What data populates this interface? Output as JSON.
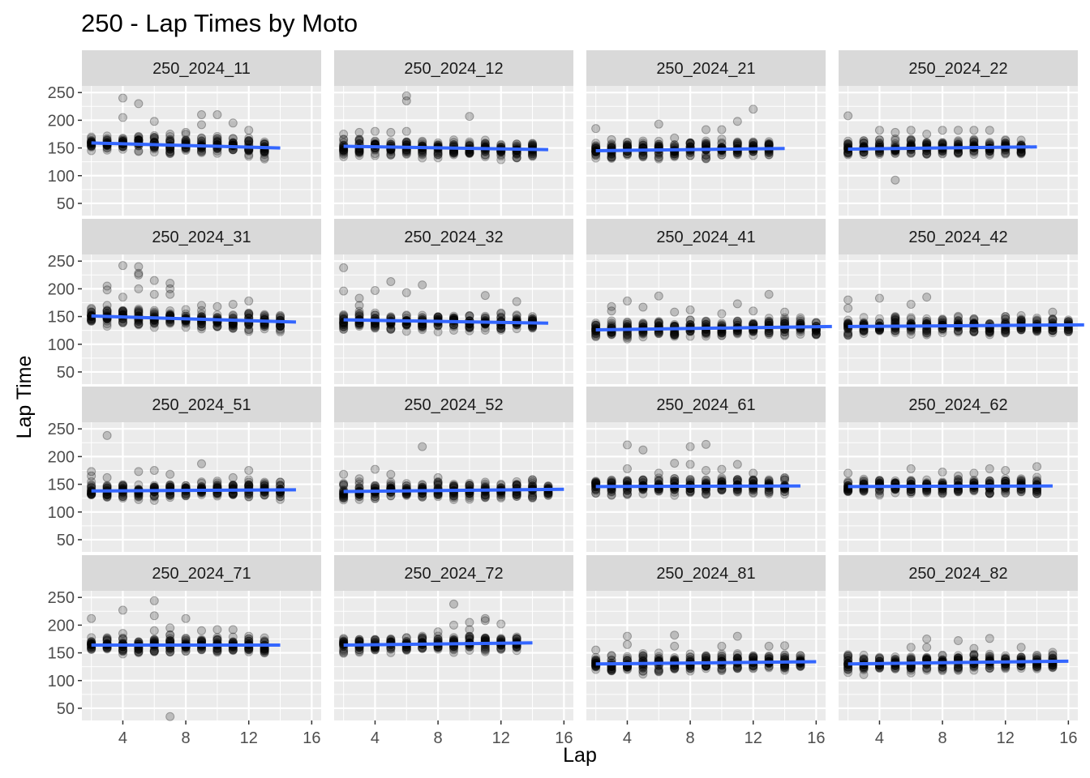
{
  "chart_data": {
    "type": "scatter",
    "title": "250 - Lap Times by Moto",
    "xlabel": "Lap",
    "ylabel": "Lap Time",
    "xlim": [
      1.4,
      16.6
    ],
    "ylim": [
      28,
      262
    ],
    "x_ticks": [
      4,
      8,
      12,
      16
    ],
    "y_ticks": [
      50,
      100,
      150,
      200,
      250
    ],
    "grid": true,
    "colors": {
      "panel_bg": "#ebebeb",
      "strip_bg": "#d9d9d9",
      "grid": "#ffffff",
      "points": "#000000",
      "trend": "#3366ff",
      "text": "#1a1a1a",
      "tick_text": "#4d4d4d"
    },
    "panels": [
      {
        "label": "250_2024_11",
        "max_lap": 13,
        "trend": [
          159,
          150
        ],
        "base": [
          158,
          156,
          160,
          158,
          157,
          156,
          156,
          155,
          154,
          153,
          152,
          150
        ],
        "outliers": [
          [
            4,
            240
          ],
          [
            5,
            230
          ],
          [
            4,
            205
          ],
          [
            6,
            198
          ],
          [
            9,
            210
          ],
          [
            9,
            192
          ],
          [
            10,
            210
          ],
          [
            11,
            195
          ],
          [
            12,
            182
          ],
          [
            8,
            178
          ],
          [
            7,
            175
          ],
          [
            13,
            152
          ]
        ]
      },
      {
        "label": "250_2024_12",
        "max_lap": 14,
        "trend": [
          153,
          147
        ],
        "base": [
          150,
          151,
          152,
          150,
          150,
          150,
          149,
          148,
          148,
          147,
          147,
          147,
          146
        ],
        "outliers": [
          [
            6,
            244
          ],
          [
            6,
            235
          ],
          [
            10,
            207
          ],
          [
            3,
            178
          ],
          [
            4,
            180
          ],
          [
            5,
            178
          ],
          [
            6,
            180
          ],
          [
            2,
            175
          ],
          [
            14,
            150
          ]
        ]
      },
      {
        "label": "250_2024_21",
        "max_lap": 13,
        "trend": [
          145,
          149
        ],
        "base": [
          146,
          146,
          147,
          147,
          147,
          147,
          148,
          148,
          148,
          148,
          149,
          148
        ],
        "outliers": [
          [
            2,
            185
          ],
          [
            6,
            193
          ],
          [
            9,
            183
          ],
          [
            10,
            183
          ],
          [
            11,
            198
          ],
          [
            12,
            220
          ],
          [
            3,
            165
          ],
          [
            7,
            168
          ],
          [
            13,
            155
          ]
        ]
      },
      {
        "label": "250_2024_22",
        "max_lap": 13,
        "trend": [
          148,
          152
        ],
        "base": [
          148,
          148,
          149,
          149,
          150,
          150,
          151,
          151,
          151,
          151,
          152,
          150
        ],
        "outliers": [
          [
            2,
            208
          ],
          [
            4,
            182
          ],
          [
            5,
            92
          ],
          [
            5,
            178
          ],
          [
            6,
            182
          ],
          [
            8,
            182
          ],
          [
            9,
            182
          ],
          [
            10,
            182
          ],
          [
            11,
            182
          ],
          [
            7,
            175
          ]
        ]
      },
      {
        "label": "250_2024_31",
        "max_lap": 14,
        "trend": [
          151,
          140
        ],
        "base": [
          150,
          150,
          150,
          148,
          147,
          146,
          145,
          144,
          143,
          142,
          141,
          140,
          138
        ],
        "outliers": [
          [
            4,
            242
          ],
          [
            5,
            240
          ],
          [
            5,
            228
          ],
          [
            5,
            225
          ],
          [
            6,
            215
          ],
          [
            7,
            210
          ],
          [
            7,
            200
          ],
          [
            7,
            190
          ],
          [
            6,
            190
          ],
          [
            3,
            205
          ],
          [
            3,
            198
          ],
          [
            4,
            185
          ],
          [
            5,
            200
          ],
          [
            3,
            170
          ],
          [
            11,
            172
          ],
          [
            12,
            178
          ],
          [
            9,
            170
          ],
          [
            10,
            168
          ]
        ]
      },
      {
        "label": "250_2024_32",
        "max_lap": 14,
        "trend": [
          144,
          138
        ],
        "base": [
          142,
          142,
          142,
          141,
          141,
          140,
          140,
          140,
          139,
          139,
          139,
          138,
          138
        ],
        "outliers": [
          [
            2,
            238
          ],
          [
            2,
            196
          ],
          [
            3,
            183
          ],
          [
            4,
            197
          ],
          [
            5,
            213
          ],
          [
            6,
            193
          ],
          [
            7,
            207
          ],
          [
            11,
            188
          ],
          [
            13,
            177
          ],
          [
            14,
            150
          ],
          [
            3,
            170
          ]
        ]
      },
      {
        "label": "250_2024_41",
        "max_lap": 16,
        "trend": [
          126,
          132
        ],
        "base": [
          126,
          127,
          127,
          127,
          128,
          128,
          128,
          129,
          129,
          130,
          130,
          130,
          131,
          131,
          128
        ],
        "outliers": [
          [
            3,
            168
          ],
          [
            3,
            160
          ],
          [
            4,
            178
          ],
          [
            5,
            167
          ],
          [
            6,
            187
          ],
          [
            7,
            158
          ],
          [
            8,
            162
          ],
          [
            11,
            173
          ],
          [
            13,
            190
          ],
          [
            14,
            158
          ],
          [
            12,
            160
          ],
          [
            10,
            155
          ]
        ]
      },
      {
        "label": "250_2024_42",
        "max_lap": 16,
        "trend": [
          132,
          135
        ],
        "base": [
          132,
          132,
          132,
          133,
          133,
          133,
          133,
          134,
          134,
          134,
          134,
          134,
          135,
          135,
          134
        ],
        "outliers": [
          [
            2,
            180
          ],
          [
            2,
            165
          ],
          [
            4,
            183
          ],
          [
            6,
            172
          ],
          [
            7,
            185
          ],
          [
            5,
            150
          ],
          [
            15,
            158
          ],
          [
            12,
            150
          ]
        ]
      },
      {
        "label": "250_2024_51",
        "max_lap": 14,
        "trend": [
          138,
          140
        ],
        "base": [
          137,
          137,
          138,
          138,
          138,
          138,
          139,
          139,
          139,
          139,
          140,
          140,
          138
        ],
        "outliers": [
          [
            3,
            238
          ],
          [
            2,
            173
          ],
          [
            2,
            165
          ],
          [
            5,
            173
          ],
          [
            6,
            175
          ],
          [
            7,
            168
          ],
          [
            9,
            187
          ],
          [
            12,
            175
          ],
          [
            3,
            162
          ],
          [
            11,
            162
          ]
        ]
      },
      {
        "label": "250_2024_52",
        "max_lap": 15,
        "trend": [
          137,
          141
        ],
        "base": [
          137,
          137,
          137,
          138,
          138,
          138,
          139,
          139,
          139,
          140,
          140,
          140,
          141,
          139
        ],
        "outliers": [
          [
            2,
            168
          ],
          [
            4,
            177
          ],
          [
            5,
            168
          ],
          [
            7,
            218
          ],
          [
            8,
            162
          ],
          [
            14,
            158
          ],
          [
            3,
            160
          ]
        ]
      },
      {
        "label": "250_2024_61",
        "max_lap": 14,
        "trend": [
          146,
          147
        ],
        "base": [
          146,
          146,
          146,
          146,
          147,
          147,
          147,
          147,
          147,
          147,
          148,
          147,
          145
        ],
        "outliers": [
          [
            4,
            221
          ],
          [
            5,
            212
          ],
          [
            4,
            178
          ],
          [
            7,
            188
          ],
          [
            8,
            218
          ],
          [
            8,
            186
          ],
          [
            9,
            222
          ],
          [
            9,
            175
          ],
          [
            11,
            186
          ],
          [
            10,
            177
          ],
          [
            6,
            170
          ],
          [
            12,
            170
          ]
        ]
      },
      {
        "label": "250_2024_62",
        "max_lap": 14,
        "trend": [
          146,
          147
        ],
        "base": [
          146,
          146,
          146,
          146,
          146,
          147,
          147,
          147,
          147,
          147,
          147,
          147,
          145
        ],
        "outliers": [
          [
            2,
            170
          ],
          [
            6,
            178
          ],
          [
            8,
            172
          ],
          [
            10,
            170
          ],
          [
            11,
            178
          ],
          [
            12,
            175
          ],
          [
            14,
            182
          ],
          [
            9,
            165
          ]
        ]
      },
      {
        "label": "250_2024_71",
        "max_lap": 13,
        "trend": [
          164,
          164
        ],
        "base": [
          164,
          164,
          164,
          164,
          164,
          164,
          164,
          164,
          164,
          164,
          164,
          162
        ],
        "outliers": [
          [
            2,
            212
          ],
          [
            4,
            227
          ],
          [
            6,
            244
          ],
          [
            6,
            217
          ],
          [
            7,
            195
          ],
          [
            8,
            212
          ],
          [
            7,
            35
          ],
          [
            9,
            190
          ],
          [
            10,
            192
          ],
          [
            11,
            192
          ],
          [
            12,
            180
          ],
          [
            4,
            185
          ],
          [
            6,
            190
          ]
        ]
      },
      {
        "label": "250_2024_72",
        "max_lap": 13,
        "trend": [
          164,
          168
        ],
        "base": [
          165,
          165,
          165,
          166,
          166,
          166,
          167,
          167,
          167,
          168,
          168,
          166
        ],
        "outliers": [
          [
            9,
            238
          ],
          [
            9,
            200
          ],
          [
            10,
            205
          ],
          [
            11,
            212
          ],
          [
            11,
            208
          ],
          [
            12,
            202
          ],
          [
            10,
            192
          ],
          [
            8,
            188
          ],
          [
            13,
            175
          ]
        ]
      },
      {
        "label": "250_2024_81",
        "max_lap": 15,
        "trend": [
          130,
          134
        ],
        "base": [
          130,
          130,
          130,
          130,
          131,
          131,
          131,
          132,
          132,
          133,
          133,
          133,
          134,
          131
        ],
        "outliers": [
          [
            2,
            155
          ],
          [
            4,
            180
          ],
          [
            4,
            165
          ],
          [
            7,
            182
          ],
          [
            7,
            162
          ],
          [
            10,
            162
          ],
          [
            11,
            180
          ],
          [
            13,
            162
          ],
          [
            14,
            163
          ],
          [
            8,
            148
          ],
          [
            15,
            145
          ]
        ]
      },
      {
        "label": "250_2024_82",
        "max_lap": 15,
        "trend": [
          130,
          135
        ],
        "base": [
          130,
          130,
          130,
          131,
          131,
          132,
          132,
          132,
          133,
          133,
          134,
          134,
          135,
          133
        ],
        "outliers": [
          [
            7,
            175
          ],
          [
            9,
            172
          ],
          [
            11,
            176
          ],
          [
            6,
            160
          ],
          [
            7,
            160
          ],
          [
            10,
            158
          ],
          [
            13,
            160
          ],
          [
            15,
            145
          ],
          [
            2,
            140
          ]
        ]
      }
    ]
  }
}
